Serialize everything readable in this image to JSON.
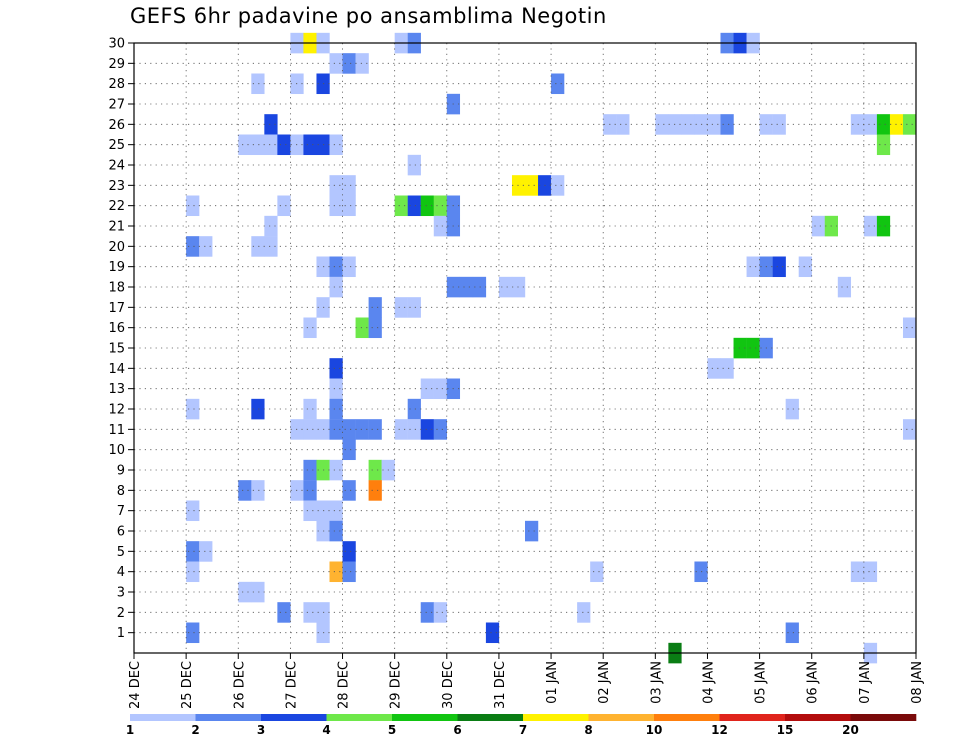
{
  "title": "GEFS 6hr padavine po ansamblima Negotin",
  "chart_data": {
    "type": "heatmap",
    "title": "GEFS 6hr padavine po ansamblima Negotin",
    "y_ticks": [
      "1",
      "2",
      "3",
      "4",
      "5",
      "6",
      "7",
      "8",
      "9",
      "10",
      "11",
      "12",
      "13",
      "14",
      "15",
      "16",
      "17",
      "18",
      "19",
      "20",
      "21",
      "22",
      "23",
      "24",
      "25",
      "26",
      "27",
      "28",
      "29",
      "30"
    ],
    "x_ticks": [
      "24 DEC",
      "25 DEC",
      "26 DEC",
      "27 DEC",
      "28 DEC",
      "29 DEC",
      "30 DEC",
      "31 DEC",
      "01 JAN",
      "02 JAN",
      "03 JAN",
      "04 JAN",
      "05 JAN",
      "06 JAN",
      "07 JAN",
      "08 JAN"
    ],
    "x_range": [
      0,
      60
    ],
    "y_range": [
      0,
      30
    ],
    "grid": true,
    "colorbar_ticks": [
      "1",
      "2",
      "3",
      "4",
      "5",
      "6",
      "7",
      "8",
      "10",
      "12",
      "15",
      "20"
    ],
    "colorbar_colors": [
      "#b3c6ff",
      "#5a86ef",
      "#1a46e0",
      "#6ee84a",
      "#11c511",
      "#0a7d14",
      "#fff200",
      "#ffb330",
      "#ff7f0d",
      "#e0241c",
      "#b30d0d",
      "#7a0a0a"
    ],
    "cells": [
      {
        "m": 30,
        "t": [
          [
            12,
            1
          ],
          [
            13,
            7
          ],
          [
            14,
            1
          ],
          [
            20,
            1
          ],
          [
            21,
            2
          ],
          [
            45,
            2
          ],
          [
            46,
            3
          ],
          [
            47,
            1
          ]
        ]
      },
      {
        "m": 29,
        "t": [
          [
            15,
            1
          ],
          [
            16,
            2
          ],
          [
            17,
            1
          ]
        ]
      },
      {
        "m": 28,
        "t": [
          [
            9,
            1
          ],
          [
            12,
            1
          ],
          [
            14,
            3
          ],
          [
            32,
            2
          ]
        ]
      },
      {
        "m": 27,
        "t": [
          [
            24,
            2
          ]
        ]
      },
      {
        "m": 26,
        "t": [
          [
            10,
            3
          ],
          [
            36,
            1
          ],
          [
            37,
            1
          ],
          [
            40,
            1
          ],
          [
            41,
            1
          ],
          [
            42,
            1
          ],
          [
            43,
            1
          ],
          [
            44,
            1
          ],
          [
            45,
            2
          ],
          [
            48,
            1
          ],
          [
            49,
            1
          ],
          [
            55,
            1
          ],
          [
            56,
            1
          ],
          [
            57,
            5
          ],
          [
            58,
            7
          ],
          [
            59,
            4
          ]
        ]
      },
      {
        "m": 25,
        "t": [
          [
            8,
            1
          ],
          [
            9,
            1
          ],
          [
            10,
            1
          ],
          [
            11,
            3
          ],
          [
            12,
            1
          ],
          [
            13,
            3
          ],
          [
            14,
            3
          ],
          [
            15,
            1
          ],
          [
            57,
            4
          ]
        ]
      },
      {
        "m": 24,
        "t": [
          [
            21,
            1
          ]
        ]
      },
      {
        "m": 23,
        "t": [
          [
            15,
            1
          ],
          [
            16,
            1
          ],
          [
            29,
            7
          ],
          [
            30,
            7
          ],
          [
            31,
            3
          ],
          [
            32,
            1
          ]
        ]
      },
      {
        "m": 22,
        "t": [
          [
            4,
            1
          ],
          [
            11,
            1
          ],
          [
            15,
            1
          ],
          [
            16,
            1
          ],
          [
            20,
            4
          ],
          [
            21,
            3
          ],
          [
            22,
            5
          ],
          [
            23,
            4
          ],
          [
            24,
            2
          ]
        ]
      },
      {
        "m": 21,
        "t": [
          [
            10,
            1
          ],
          [
            23,
            1
          ],
          [
            24,
            2
          ],
          [
            52,
            1
          ],
          [
            53,
            4
          ],
          [
            56,
            1
          ],
          [
            57,
            5
          ]
        ]
      },
      {
        "m": 20,
        "t": [
          [
            4,
            2
          ],
          [
            5,
            1
          ],
          [
            9,
            1
          ],
          [
            10,
            1
          ]
        ]
      },
      {
        "m": 19,
        "t": [
          [
            14,
            1
          ],
          [
            15,
            2
          ],
          [
            16,
            1
          ],
          [
            47,
            1
          ],
          [
            48,
            2
          ],
          [
            49,
            3
          ],
          [
            51,
            1
          ]
        ]
      },
      {
        "m": 18,
        "t": [
          [
            15,
            1
          ],
          [
            24,
            2
          ],
          [
            25,
            2
          ],
          [
            26,
            2
          ],
          [
            28,
            1
          ],
          [
            29,
            1
          ],
          [
            54,
            1
          ]
        ]
      },
      {
        "m": 17,
        "t": [
          [
            14,
            1
          ],
          [
            18,
            2
          ],
          [
            20,
            1
          ],
          [
            21,
            1
          ]
        ]
      },
      {
        "m": 16,
        "t": [
          [
            13,
            1
          ],
          [
            17,
            4
          ],
          [
            18,
            2
          ],
          [
            59,
            1
          ]
        ]
      },
      {
        "m": 15,
        "t": [
          [
            46,
            5
          ],
          [
            47,
            5
          ],
          [
            48,
            2
          ]
        ]
      },
      {
        "m": 14,
        "t": [
          [
            15,
            3
          ],
          [
            44,
            1
          ],
          [
            45,
            1
          ]
        ]
      },
      {
        "m": 13,
        "t": [
          [
            15,
            1
          ],
          [
            22,
            1
          ],
          [
            23,
            1
          ],
          [
            24,
            2
          ]
        ]
      },
      {
        "m": 12,
        "t": [
          [
            4,
            1
          ],
          [
            9,
            3
          ],
          [
            13,
            1
          ],
          [
            15,
            2
          ],
          [
            21,
            2
          ],
          [
            50,
            1
          ]
        ]
      },
      {
        "m": 11,
        "t": [
          [
            12,
            1
          ],
          [
            13,
            1
          ],
          [
            14,
            1
          ],
          [
            15,
            2
          ],
          [
            16,
            2
          ],
          [
            17,
            2
          ],
          [
            18,
            2
          ],
          [
            20,
            1
          ],
          [
            21,
            1
          ],
          [
            22,
            3
          ],
          [
            23,
            2
          ],
          [
            59,
            1
          ]
        ]
      },
      {
        "m": 10,
        "t": [
          [
            16,
            2
          ]
        ]
      },
      {
        "m": 9,
        "t": [
          [
            13,
            2
          ],
          [
            14,
            4
          ],
          [
            15,
            1
          ],
          [
            18,
            4
          ],
          [
            19,
            1
          ]
        ]
      },
      {
        "m": 8,
        "t": [
          [
            8,
            2
          ],
          [
            9,
            1
          ],
          [
            12,
            1
          ],
          [
            13,
            2
          ],
          [
            16,
            2
          ],
          [
            18,
            9
          ]
        ]
      },
      {
        "m": 7,
        "t": [
          [
            4,
            1
          ],
          [
            13,
            1
          ],
          [
            14,
            1
          ],
          [
            15,
            1
          ]
        ]
      },
      {
        "m": 6,
        "t": [
          [
            14,
            1
          ],
          [
            15,
            2
          ],
          [
            30,
            2
          ]
        ]
      },
      {
        "m": 5,
        "t": [
          [
            4,
            2
          ],
          [
            5,
            1
          ],
          [
            16,
            3
          ]
        ]
      },
      {
        "m": 4,
        "t": [
          [
            4,
            1
          ],
          [
            15,
            8
          ],
          [
            16,
            2
          ],
          [
            35,
            1
          ],
          [
            43,
            2
          ],
          [
            55,
            1
          ],
          [
            56,
            1
          ]
        ]
      },
      {
        "m": 3,
        "t": [
          [
            8,
            1
          ],
          [
            9,
            1
          ]
        ]
      },
      {
        "m": 2,
        "t": [
          [
            11,
            2
          ],
          [
            13,
            1
          ],
          [
            14,
            1
          ],
          [
            22,
            2
          ],
          [
            23,
            1
          ],
          [
            34,
            1
          ]
        ]
      },
      {
        "m": 1,
        "t": [
          [
            4,
            2
          ],
          [
            14,
            1
          ],
          [
            27,
            3
          ],
          [
            50,
            2
          ]
        ]
      },
      {
        "m": 0,
        "t": [
          [
            41,
            6
          ],
          [
            56,
            1
          ]
        ]
      }
    ]
  }
}
